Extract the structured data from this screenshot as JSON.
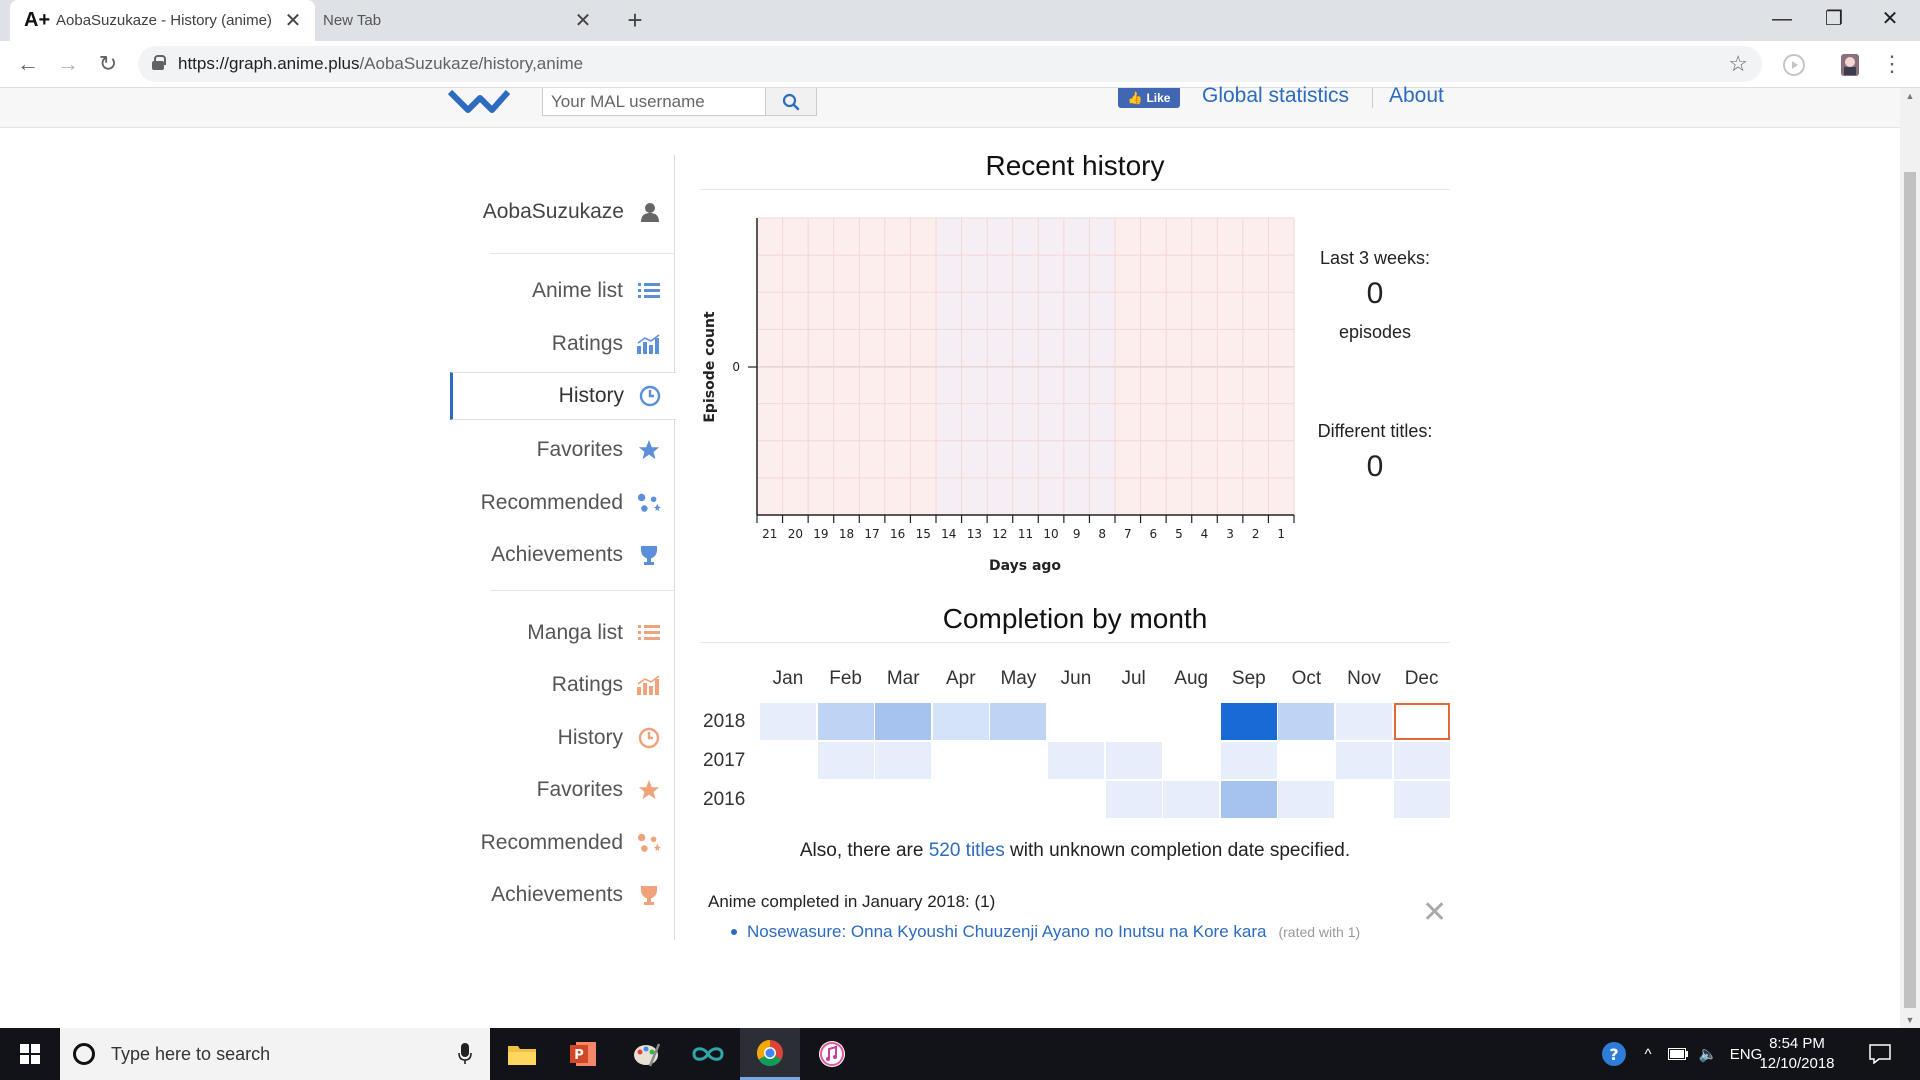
{
  "browser": {
    "tabs": [
      {
        "title": "AobaSuzukaze - History (anime)",
        "favicon": "A+"
      },
      {
        "title": "New Tab"
      }
    ],
    "url_host": "https://graph.anime.plus",
    "url_path": "/AobaSuzukaze/history,anime"
  },
  "header": {
    "search_placeholder": "Your MAL username",
    "fb_like": "Like",
    "nav_links": [
      "Global statistics",
      "About"
    ]
  },
  "sidebar": {
    "username": "AobaSuzukaze",
    "anime_items": [
      "Anime list",
      "Ratings",
      "History",
      "Favorites",
      "Recommended",
      "Achievements"
    ],
    "manga_items": [
      "Manga list",
      "Ratings",
      "History",
      "Favorites",
      "Recommended",
      "Achievements"
    ],
    "active_item": "History",
    "anime_color": "#5b8fd9",
    "manga_color": "#f0a27a"
  },
  "recent_history": {
    "title": "Recent history",
    "stats": {
      "last_weeks_label": "Last 3 weeks:",
      "episodes_value": "0",
      "episodes_label": "episodes",
      "titles_label": "Different titles:",
      "titles_value": "0"
    }
  },
  "chart_data": {
    "type": "bar",
    "xlabel": "Days ago",
    "ylabel": "Episode count",
    "categories": [
      "21",
      "20",
      "19",
      "18",
      "17",
      "16",
      "15",
      "14",
      "13",
      "12",
      "11",
      "10",
      "9",
      "8",
      "7",
      "6",
      "5",
      "4",
      "3",
      "2",
      "1"
    ],
    "values": [
      0,
      0,
      0,
      0,
      0,
      0,
      0,
      0,
      0,
      0,
      0,
      0,
      0,
      0,
      0,
      0,
      0,
      0,
      0,
      0,
      0
    ],
    "yticks": [
      "0"
    ],
    "grid": true,
    "background_bands": [
      "weekend-pink",
      "weekday-lavender",
      "weekend-pink"
    ]
  },
  "completion": {
    "title": "Completion by month",
    "months": [
      "Jan",
      "Feb",
      "Mar",
      "Apr",
      "May",
      "Jun",
      "Jul",
      "Aug",
      "Sep",
      "Oct",
      "Nov",
      "Dec"
    ],
    "years": [
      {
        "year": "2018",
        "levels": [
          1,
          3,
          4,
          2,
          3,
          0,
          0,
          0,
          9,
          3,
          1,
          -1
        ]
      },
      {
        "year": "2017",
        "levels": [
          0,
          1,
          1,
          0,
          0,
          1,
          1,
          0,
          1,
          0,
          1,
          1
        ]
      },
      {
        "year": "2016",
        "levels": [
          0,
          0,
          0,
          0,
          0,
          0,
          1,
          1,
          4,
          1,
          0,
          1
        ]
      }
    ],
    "unknown_prefix": "Also, there are ",
    "unknown_link": "520 titles",
    "unknown_suffix": " with unknown completion date specified.",
    "completed_header": "Anime completed in January 2018: (1)",
    "completed_items": [
      {
        "title": "Nosewasure: Onna Kyoushi Chuuzenji Ayano no Inutsu na Kore kara",
        "rating": "(rated with 1)"
      }
    ]
  },
  "taskbar": {
    "search_placeholder": "Type here to search",
    "language": "ENG",
    "time": "8:54 PM",
    "date": "12/10/2018"
  }
}
